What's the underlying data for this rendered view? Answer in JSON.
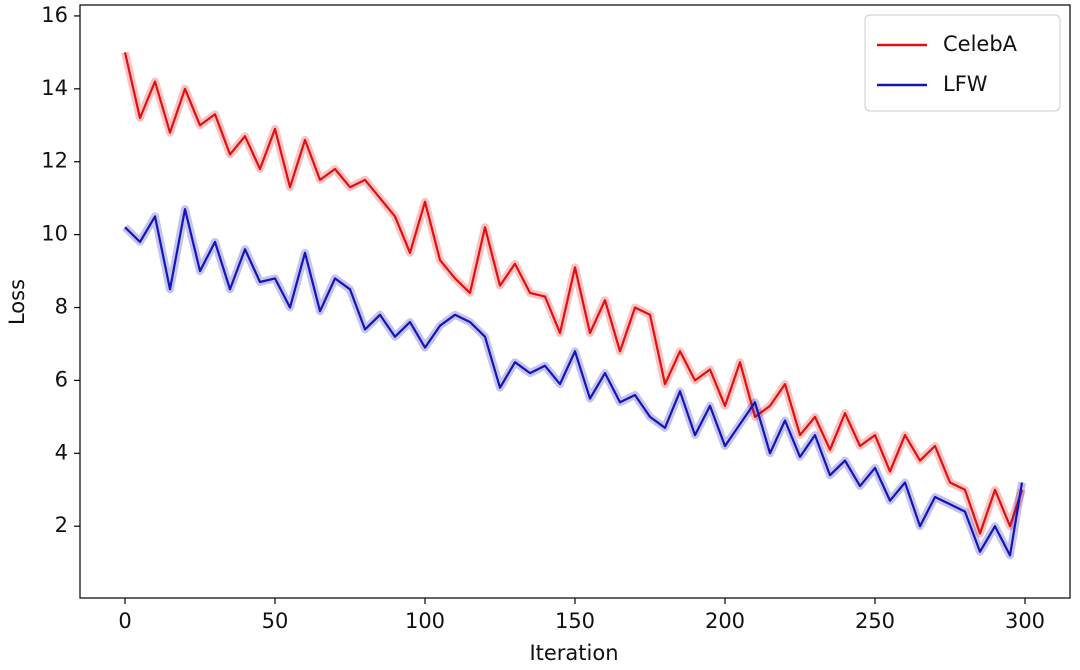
{
  "chart_data": {
    "type": "line",
    "xlabel": "Iteration",
    "ylabel": "Loss",
    "x": [
      0,
      5,
      10,
      15,
      20,
      25,
      30,
      35,
      40,
      45,
      50,
      55,
      60,
      65,
      70,
      75,
      80,
      85,
      90,
      95,
      100,
      105,
      110,
      115,
      120,
      125,
      130,
      135,
      140,
      145,
      150,
      155,
      160,
      165,
      170,
      175,
      180,
      185,
      190,
      195,
      200,
      205,
      210,
      215,
      220,
      225,
      230,
      235,
      240,
      245,
      250,
      255,
      260,
      265,
      270,
      275,
      280,
      285,
      290,
      295,
      299
    ],
    "series": [
      {
        "name": "CelebA",
        "color": "#e01010",
        "values": [
          15,
          13.2,
          14.2,
          12.8,
          14,
          13,
          13.3,
          12.2,
          12.7,
          11.8,
          12.9,
          11.3,
          12.6,
          11.5,
          11.8,
          11.3,
          11.5,
          11,
          10.5,
          9.5,
          10.9,
          9.3,
          8.8,
          8.4,
          10.2,
          8.6,
          9.2,
          8.4,
          8.3,
          7.3,
          9.1,
          7.3,
          8.2,
          6.8,
          8,
          7.8,
          5.9,
          6.8,
          6.0,
          6.3,
          5.3,
          6.5,
          5,
          5.3,
          5.9,
          4.5,
          5,
          4.1,
          5.1,
          4.2,
          4.5,
          3.5,
          4.5,
          3.8,
          4.2,
          3.2,
          3.0,
          1.8,
          3,
          2,
          3
        ]
      },
      {
        "name": "LFW",
        "color": "#1414b8",
        "values": [
          10.2,
          9.8,
          10.5,
          8.5,
          10.7,
          9,
          9.8,
          8.5,
          9.6,
          8.7,
          8.8,
          8,
          9.5,
          7.9,
          8.8,
          8.5,
          7.4,
          7.8,
          7.2,
          7.6,
          6.9,
          7.5,
          7.8,
          7.6,
          7.2,
          5.8,
          6.5,
          6.2,
          6.4,
          5.9,
          6.8,
          5.5,
          6.2,
          5.4,
          5.6,
          5.0,
          4.7,
          5.7,
          4.5,
          5.3,
          4.2,
          4.8,
          5.4,
          4.0,
          4.9,
          3.9,
          4.5,
          3.4,
          3.8,
          3.1,
          3.6,
          2.7,
          3.2,
          2.0,
          2.8,
          2.6,
          2.4,
          1.3,
          2.0,
          1.2,
          3.2
        ]
      }
    ],
    "xlim": [
      -15,
      315
    ],
    "xticks": [
      0,
      50,
      100,
      150,
      200,
      250,
      300
    ],
    "ylim": [
      0.03,
      16.3
    ],
    "yticks": [
      2,
      4,
      6,
      8,
      10,
      12,
      14,
      16
    ],
    "legend": "upper right"
  }
}
